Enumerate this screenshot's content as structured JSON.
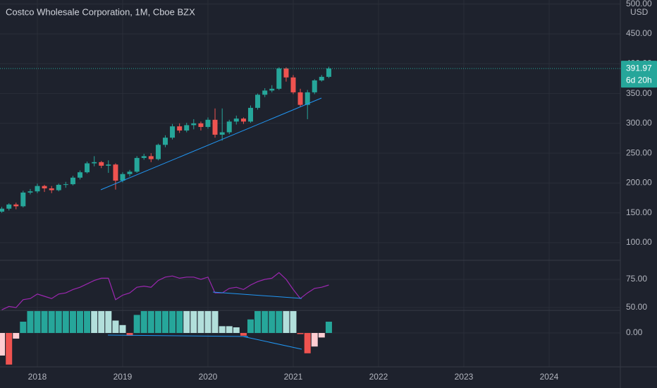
{
  "chart_data": [
    {
      "type": "candlestick",
      "title": "Costco Wholesale Corporation, 1M, Cboe BZX",
      "unit": "USD",
      "x": [
        2017.583,
        2017.667,
        2017.75,
        2017.833,
        2017.917,
        2018,
        2018.083,
        2018.167,
        2018.25,
        2018.333,
        2018.417,
        2018.5,
        2018.583,
        2018.667,
        2018.75,
        2018.833,
        2018.917,
        2019,
        2019.083,
        2019.167,
        2019.25,
        2019.333,
        2019.417,
        2019.5,
        2019.583,
        2019.667,
        2019.75,
        2019.833,
        2019.917,
        2020,
        2020.083,
        2020.167,
        2020.25,
        2020.333,
        2020.417,
        2020.5,
        2020.583,
        2020.667,
        2020.75,
        2020.833,
        2020.917,
        2021,
        2021.083,
        2021.167,
        2021.25,
        2021.333,
        2021.417
      ],
      "open": [
        152,
        157,
        164,
        161,
        184,
        186,
        195,
        191,
        188,
        197,
        198,
        209,
        218,
        233,
        235,
        229,
        231,
        204,
        215,
        219,
        242,
        245,
        240,
        264,
        276,
        295,
        288,
        297,
        300,
        294,
        306,
        281,
        285,
        303,
        308,
        303,
        326,
        348,
        355,
        358,
        392,
        377,
        352,
        331,
        352,
        372,
        378
      ],
      "high": [
        160,
        166,
        167,
        187,
        190,
        199,
        197,
        195,
        199,
        202,
        212,
        221,
        236,
        245,
        237,
        238,
        233,
        218,
        222,
        245,
        249,
        250,
        266,
        280,
        299,
        300,
        301,
        307,
        303,
        310,
        325,
        325,
        306,
        313,
        310,
        330,
        350,
        359,
        364,
        394,
        394,
        381,
        358,
        356,
        374,
        381,
        395
      ],
      "low": [
        150,
        154,
        156,
        159,
        181,
        183,
        185,
        183,
        186,
        192,
        196,
        206,
        216,
        228,
        225,
        217,
        189,
        201,
        211,
        217,
        239,
        235,
        238,
        260,
        273,
        284,
        285,
        290,
        288,
        291,
        276,
        271,
        282,
        298,
        299,
        301,
        323,
        344,
        352,
        356,
        370,
        349,
        328,
        307,
        349,
        370,
        376
      ],
      "close": [
        157,
        164,
        161,
        184,
        186,
        195,
        191,
        188,
        197,
        198,
        209,
        218,
        233,
        235,
        229,
        231,
        204,
        215,
        219,
        242,
        245,
        240,
        264,
        276,
        295,
        288,
        297,
        300,
        294,
        306,
        281,
        285,
        303,
        308,
        303,
        326,
        348,
        355,
        358,
        392,
        377,
        352,
        331,
        352,
        372,
        378,
        391.97
      ],
      "up_color": "#26a69a",
      "down_color": "#ef5350",
      "last_price": {
        "value": 391.97,
        "label": "391.97"
      },
      "countdown": "6d 20h",
      "xlim": [
        2017.562,
        2024.835
      ],
      "xticks": [
        {
          "value": 2018,
          "label": "2018"
        },
        {
          "value": 2019,
          "label": "2019"
        },
        {
          "value": 2020,
          "label": "2020"
        },
        {
          "value": 2021,
          "label": "2021"
        },
        {
          "value": 2022,
          "label": "2022"
        },
        {
          "value": 2023,
          "label": "2023"
        },
        {
          "value": 2024,
          "label": "2024"
        }
      ],
      "ylim": [
        71.6,
        506.8
      ],
      "yticks": [
        {
          "value": 100,
          "label": "100.00"
        },
        {
          "value": 150,
          "label": "150.00"
        },
        {
          "value": 200,
          "label": "200.00"
        },
        {
          "value": 250,
          "label": "250.00"
        },
        {
          "value": 300,
          "label": "300.00"
        },
        {
          "value": 350,
          "label": "350.00"
        },
        {
          "value": 400,
          "label": "400.00"
        },
        {
          "value": 450,
          "label": "450.00"
        },
        {
          "value": 500,
          "label": "500.00"
        }
      ],
      "grid": true
    },
    {
      "type": "line",
      "color": "#9c27b0",
      "values": [
        48,
        51,
        50,
        57,
        58,
        62,
        60,
        58,
        62,
        63,
        66,
        68,
        71,
        74,
        76,
        76,
        57,
        61,
        63,
        68,
        69,
        68,
        74,
        77,
        78,
        76,
        77,
        77,
        75,
        77,
        63,
        63,
        67,
        68,
        66,
        70,
        73,
        75,
        76,
        81,
        75,
        66,
        58,
        63,
        67,
        68,
        70
      ],
      "ylim": [
        47.5,
        91.25
      ],
      "yticks": [
        {
          "value": 50,
          "label": "50.00"
        },
        {
          "value": 75,
          "label": "75.00"
        }
      ]
    },
    {
      "type": "bar",
      "values": [
        -1.0,
        -1.4,
        -0.25,
        0.5,
        0.97,
        0.97,
        0.97,
        0.97,
        0.97,
        0.97,
        0.97,
        0.97,
        0.97,
        0.97,
        0.97,
        0.97,
        0.55,
        0.35,
        -0.12,
        0.8,
        0.97,
        0.97,
        0.97,
        0.97,
        0.97,
        0.97,
        0.97,
        0.97,
        0.97,
        0.97,
        0.97,
        0.3,
        0.3,
        0.25,
        -0.12,
        0.6,
        0.97,
        0.97,
        0.97,
        0.97,
        0.97,
        0.97,
        -0.05,
        -0.9,
        -0.6,
        -0.2,
        0.5
      ],
      "colors": [
        "#ffcdd2",
        "#ef5350",
        "#ffcdd2",
        "#26a69a",
        "#26a69a",
        "#26a69a",
        "#26a69a",
        "#26a69a",
        "#26a69a",
        "#26a69a",
        "#26a69a",
        "#26a69a",
        "#26a69a",
        "#b2dfdb",
        "#b2dfdb",
        "#b2dfdb",
        "#b2dfdb",
        "#b2dfdb",
        "#ef5350",
        "#26a69a",
        "#26a69a",
        "#26a69a",
        "#26a69a",
        "#26a69a",
        "#26a69a",
        "#26a69a",
        "#b2dfdb",
        "#b2dfdb",
        "#b2dfdb",
        "#b2dfdb",
        "#b2dfdb",
        "#b2dfdb",
        "#b2dfdb",
        "#b2dfdb",
        "#ef5350",
        "#26a69a",
        "#26a69a",
        "#26a69a",
        "#26a69a",
        "#26a69a",
        "#b2dfdb",
        "#b2dfdb",
        "#ef5350",
        "#ef5350",
        "#ffcdd2",
        "#ffcdd2",
        "#26a69a"
      ],
      "ylim": [
        -1.5,
        1.0
      ],
      "yticks": [
        {
          "value": 0,
          "label": "0.00"
        }
      ]
    }
  ]
}
